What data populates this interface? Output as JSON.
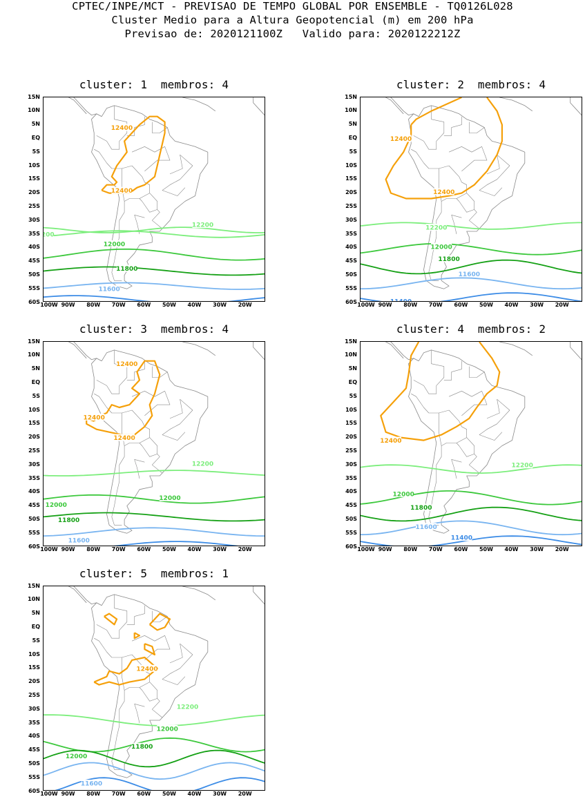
{
  "header": {
    "line1": "CPTEC/INPE/MCT - PREVISAO DE TEMPO GLOBAL POR ENSEMBLE - TQ0126L028",
    "line2": "Cluster Medio para a Altura Geopotencial (m) em 200 hPa",
    "line3": "Previsao de: 2020121100Z   Valido para: 2020122212Z"
  },
  "axes": {
    "lat_labels": [
      "15N",
      "10N",
      "5N",
      "EQ",
      "5S",
      "10S",
      "15S",
      "20S",
      "25S",
      "30S",
      "35S",
      "40S",
      "45S",
      "50S",
      "55S",
      "60S"
    ],
    "lon_labels": [
      "100W",
      "90W",
      "80W",
      "70W",
      "60W",
      "50W",
      "40W",
      "30W",
      "20W"
    ]
  },
  "colors": {
    "c12400": "#f5a00a",
    "c12200": "#7cee7c",
    "c12000": "#3cc83c",
    "c11800": "#14a014",
    "c11600": "#78b4f0",
    "c11400": "#3c8ce6",
    "coast": "#888888"
  },
  "panels": [
    {
      "title": "cluster: 1  membros: 4",
      "labels": {
        "a": "12400",
        "b": "12400",
        "c": "12200",
        "d": "12200",
        "e": "12000",
        "f": "11800",
        "g": "11600"
      }
    },
    {
      "title": "cluster: 2  membros: 4",
      "labels": {
        "a": "12400",
        "b": "12400",
        "c": "12200",
        "e": "12000",
        "f": "11800",
        "g": "11600",
        "h": "11400"
      }
    },
    {
      "title": "cluster: 3  membros: 4",
      "labels": {
        "a": "12400",
        "b": "12400",
        "b2": "12400",
        "c": "12200",
        "d": "12000",
        "e": "12000",
        "f": "11800",
        "g": "11600"
      }
    },
    {
      "title": "cluster: 4  membros: 2",
      "labels": {
        "a": "12400",
        "c": "12200",
        "e": "12000",
        "f": "11800",
        "g": "11600",
        "h": "11400"
      }
    },
    {
      "title": "cluster: 5  membros: 1",
      "labels": {
        "a": "12400",
        "c": "12200",
        "e": "12000",
        "e2": "12000",
        "f": "11800",
        "g": "11600"
      }
    }
  ]
}
